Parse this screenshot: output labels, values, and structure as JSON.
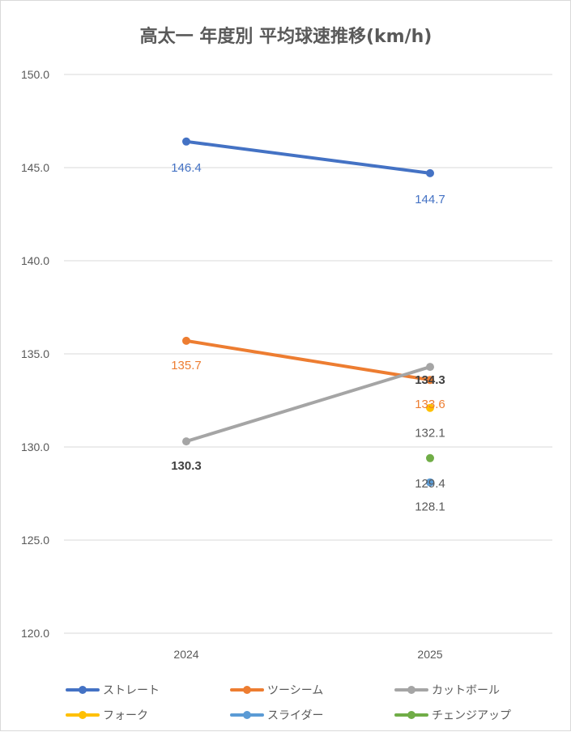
{
  "chart_data": {
    "type": "line",
    "title": "高太一 年度別 平均球速推移(km/h)",
    "categories": [
      "2024",
      "2025"
    ],
    "ylim": [
      120,
      150
    ],
    "ytick_step": 5,
    "grid": true,
    "legend_position": "bottom",
    "series": [
      {
        "name": "ストレート",
        "color": "#4472c4",
        "values": [
          146.4,
          144.7
        ],
        "labels": [
          "146.4",
          "144.7"
        ],
        "label_bold": false
      },
      {
        "name": "ツーシーム",
        "color": "#ed7d31",
        "values": [
          135.7,
          133.6
        ],
        "labels": [
          "135.7",
          "133.6"
        ],
        "label_bold": false
      },
      {
        "name": "カットボール",
        "color": "#a5a5a5",
        "values": [
          130.3,
          134.3
        ],
        "labels": [
          "130.3",
          "134.3"
        ],
        "label_bold": true
      },
      {
        "name": "フォーク",
        "color": "#ffc000",
        "values": [
          null,
          132.1
        ],
        "labels": [
          null,
          "132.1"
        ],
        "label_bold": false
      },
      {
        "name": "スライダー",
        "color": "#5b9bd5",
        "values": [
          null,
          128.1
        ],
        "labels": [
          null,
          "128.1"
        ],
        "label_bold": false
      },
      {
        "name": "チェンジアップ",
        "color": "#70ad47",
        "values": [
          null,
          129.4
        ],
        "labels": [
          null,
          "129.4"
        ],
        "label_bold": false
      }
    ]
  }
}
